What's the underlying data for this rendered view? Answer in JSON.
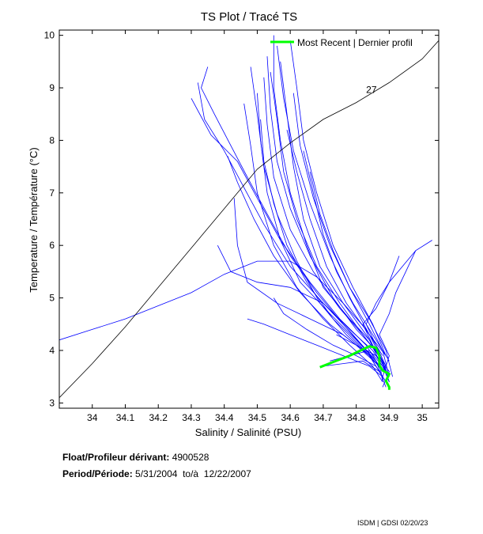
{
  "chart_data": {
    "type": "line",
    "title": "TS Plot / Tracé TS",
    "xlabel": "Salinity / Salinité (PSU)",
    "ylabel": "Temperature / Température (°C)",
    "xlim": [
      33.9,
      35.05
    ],
    "ylim": [
      2.9,
      10.1
    ],
    "xticks": [
      "34",
      "34.1",
      "34.2",
      "34.3",
      "34.4",
      "34.5",
      "34.6",
      "34.7",
      "34.8",
      "34.9",
      "35"
    ],
    "yticks": [
      "3",
      "4",
      "5",
      "6",
      "7",
      "8",
      "9",
      "10"
    ],
    "grid": false,
    "legend": {
      "label": "Most Recent | Dernier profil",
      "position": "top-right",
      "color": "#00ff00"
    },
    "isopycnal": {
      "label": "27",
      "points": [
        [
          33.9,
          3.1
        ],
        [
          34.0,
          3.75
        ],
        [
          34.1,
          4.45
        ],
        [
          34.2,
          5.2
        ],
        [
          34.3,
          5.95
        ],
        [
          34.4,
          6.7
        ],
        [
          34.5,
          7.45
        ],
        [
          34.6,
          7.95
        ],
        [
          34.7,
          8.4
        ],
        [
          34.8,
          8.72
        ],
        [
          34.9,
          9.1
        ],
        [
          35.0,
          9.55
        ],
        [
          35.05,
          9.9
        ]
      ],
      "label_at": [
        34.83,
        8.9
      ]
    },
    "series": [
      {
        "points": [
          [
            34.55,
            10.0
          ],
          [
            34.55,
            9.0
          ],
          [
            34.57,
            8.0
          ],
          [
            34.6,
            7.0
          ],
          [
            34.65,
            6.0
          ],
          [
            34.7,
            5.2
          ],
          [
            34.78,
            4.6
          ],
          [
            34.84,
            4.2
          ],
          [
            34.87,
            3.8
          ],
          [
            34.88,
            3.4
          ]
        ]
      },
      {
        "points": [
          [
            34.53,
            9.6
          ],
          [
            34.54,
            8.6
          ],
          [
            34.56,
            7.6
          ],
          [
            34.6,
            6.7
          ],
          [
            34.66,
            5.8
          ],
          [
            34.73,
            5.0
          ],
          [
            34.8,
            4.4
          ],
          [
            34.86,
            4.0
          ],
          [
            34.89,
            3.6
          ]
        ]
      },
      {
        "points": [
          [
            34.52,
            9.2
          ],
          [
            34.53,
            8.3
          ],
          [
            34.55,
            7.3
          ],
          [
            34.6,
            6.3
          ],
          [
            34.67,
            5.5
          ],
          [
            34.75,
            4.8
          ],
          [
            34.82,
            4.3
          ],
          [
            34.87,
            3.9
          ],
          [
            34.9,
            3.5
          ]
        ]
      },
      {
        "points": [
          [
            34.56,
            9.8
          ],
          [
            34.58,
            8.8
          ],
          [
            34.61,
            7.8
          ],
          [
            34.66,
            6.8
          ],
          [
            34.72,
            5.8
          ],
          [
            34.78,
            5.0
          ],
          [
            34.84,
            4.3
          ],
          [
            34.88,
            3.8
          ]
        ]
      },
      {
        "points": [
          [
            34.5,
            8.9
          ],
          [
            34.51,
            8.0
          ],
          [
            34.53,
            7.0
          ],
          [
            34.57,
            6.1
          ],
          [
            34.63,
            5.3
          ],
          [
            34.72,
            4.7
          ],
          [
            34.8,
            4.2
          ],
          [
            34.86,
            3.8
          ],
          [
            34.89,
            3.3
          ]
        ]
      },
      {
        "points": [
          [
            34.46,
            8.7
          ],
          [
            34.48,
            7.9
          ],
          [
            34.5,
            7.0
          ],
          [
            34.55,
            6.0
          ],
          [
            34.62,
            5.2
          ],
          [
            34.7,
            4.6
          ],
          [
            34.78,
            4.1
          ],
          [
            34.85,
            3.7
          ],
          [
            34.88,
            3.4
          ]
        ]
      },
      {
        "points": [
          [
            34.48,
            9.4
          ],
          [
            34.5,
            8.5
          ],
          [
            34.52,
            7.5
          ],
          [
            34.56,
            6.6
          ],
          [
            34.62,
            5.7
          ],
          [
            34.69,
            4.9
          ],
          [
            34.77,
            4.3
          ],
          [
            34.84,
            3.9
          ],
          [
            34.88,
            3.5
          ]
        ]
      },
      {
        "points": [
          [
            34.6,
            9.9
          ],
          [
            34.62,
            9.0
          ],
          [
            34.64,
            8.0
          ],
          [
            34.68,
            7.0
          ],
          [
            34.73,
            6.0
          ],
          [
            34.79,
            5.2
          ],
          [
            34.85,
            4.5
          ],
          [
            34.89,
            3.9
          ]
        ]
      },
      {
        "points": [
          [
            34.35,
            9.4
          ],
          [
            34.33,
            9.0
          ],
          [
            34.37,
            8.5
          ],
          [
            34.42,
            7.9
          ],
          [
            34.47,
            7.3
          ],
          [
            34.53,
            6.6
          ],
          [
            34.6,
            5.8
          ],
          [
            34.68,
            5.1
          ],
          [
            34.76,
            4.5
          ],
          [
            34.83,
            4.0
          ],
          [
            34.88,
            3.6
          ]
        ]
      },
      {
        "points": [
          [
            34.32,
            9.1
          ],
          [
            34.34,
            8.4
          ],
          [
            34.4,
            7.8
          ],
          [
            34.46,
            7.1
          ],
          [
            34.52,
            6.4
          ],
          [
            34.6,
            5.6
          ],
          [
            34.7,
            4.9
          ],
          [
            34.79,
            4.3
          ],
          [
            34.86,
            3.8
          ]
        ]
      },
      {
        "points": [
          [
            34.3,
            8.8
          ],
          [
            34.36,
            8.1
          ],
          [
            34.44,
            7.6
          ],
          [
            34.5,
            6.9
          ],
          [
            34.57,
            6.1
          ],
          [
            34.66,
            5.3
          ],
          [
            34.75,
            4.6
          ],
          [
            34.83,
            4.1
          ],
          [
            34.88,
            3.6
          ]
        ]
      },
      {
        "points": [
          [
            34.41,
            7.7
          ],
          [
            34.44,
            7.2
          ],
          [
            34.49,
            6.5
          ],
          [
            34.55,
            5.8
          ],
          [
            34.63,
            5.1
          ],
          [
            34.72,
            4.5
          ],
          [
            34.8,
            4.1
          ],
          [
            34.87,
            3.7
          ]
        ]
      },
      {
        "points": [
          [
            34.57,
            9.5
          ],
          [
            34.59,
            8.5
          ],
          [
            34.61,
            7.5
          ],
          [
            34.64,
            6.5
          ],
          [
            34.69,
            5.6
          ],
          [
            34.76,
            4.9
          ],
          [
            34.83,
            4.3
          ],
          [
            34.88,
            3.8
          ],
          [
            34.9,
            3.4
          ]
        ]
      },
      {
        "points": [
          [
            34.59,
            8.2
          ],
          [
            34.62,
            7.4
          ],
          [
            34.66,
            6.5
          ],
          [
            34.71,
            5.6
          ],
          [
            34.77,
            4.9
          ],
          [
            34.84,
            4.3
          ],
          [
            34.89,
            3.9
          ]
        ]
      },
      {
        "points": [
          [
            34.64,
            7.8
          ],
          [
            34.67,
            7.0
          ],
          [
            34.7,
            6.2
          ],
          [
            34.74,
            5.5
          ],
          [
            34.79,
            4.9
          ],
          [
            34.85,
            4.3
          ],
          [
            34.9,
            3.8
          ]
        ]
      },
      {
        "points": [
          [
            34.38,
            6.0
          ],
          [
            34.42,
            5.5
          ],
          [
            34.5,
            5.3
          ],
          [
            34.6,
            5.2
          ],
          [
            34.7,
            4.9
          ],
          [
            34.78,
            4.4
          ],
          [
            34.85,
            4.0
          ],
          [
            34.89,
            3.6
          ]
        ]
      },
      {
        "points": [
          [
            34.43,
            6.9
          ],
          [
            34.44,
            6.0
          ],
          [
            34.47,
            5.3
          ],
          [
            34.56,
            4.9
          ],
          [
            34.66,
            4.6
          ],
          [
            34.76,
            4.3
          ],
          [
            34.84,
            3.9
          ],
          [
            34.88,
            3.5
          ]
        ]
      },
      {
        "points": [
          [
            33.9,
            4.2
          ],
          [
            34.0,
            4.4
          ],
          [
            34.1,
            4.6
          ],
          [
            34.2,
            4.85
          ],
          [
            34.3,
            5.1
          ],
          [
            34.4,
            5.45
          ],
          [
            34.5,
            5.7
          ],
          [
            34.6,
            5.7
          ],
          [
            34.68,
            5.4
          ],
          [
            34.76,
            4.9
          ],
          [
            34.83,
            4.4
          ],
          [
            34.88,
            3.9
          ]
        ]
      },
      {
        "points": [
          [
            35.03,
            6.1
          ],
          [
            34.98,
            5.9
          ],
          [
            34.94,
            5.6
          ],
          [
            34.9,
            5.3
          ],
          [
            34.86,
            4.9
          ],
          [
            34.83,
            4.5
          ],
          [
            34.86,
            4.1
          ],
          [
            34.89,
            3.7
          ]
        ]
      },
      {
        "points": [
          [
            34.98,
            5.9
          ],
          [
            34.95,
            5.5
          ],
          [
            34.92,
            5.1
          ],
          [
            34.9,
            4.7
          ],
          [
            34.87,
            4.3
          ],
          [
            34.9,
            3.9
          ],
          [
            34.88,
            3.5
          ]
        ]
      },
      {
        "points": [
          [
            34.93,
            5.8
          ],
          [
            34.9,
            5.3
          ],
          [
            34.86,
            4.8
          ],
          [
            34.82,
            4.5
          ],
          [
            34.85,
            4.1
          ],
          [
            34.89,
            3.7
          ]
        ]
      },
      {
        "points": [
          [
            34.55,
            5.0
          ],
          [
            34.58,
            4.7
          ],
          [
            34.65,
            4.4
          ],
          [
            34.73,
            4.1
          ],
          [
            34.8,
            3.9
          ],
          [
            34.86,
            3.7
          ],
          [
            34.89,
            3.4
          ]
        ]
      },
      {
        "points": [
          [
            34.47,
            4.6
          ],
          [
            34.52,
            4.5
          ],
          [
            34.6,
            4.3
          ],
          [
            34.68,
            4.1
          ],
          [
            34.76,
            3.9
          ],
          [
            34.84,
            3.7
          ],
          [
            34.88,
            3.5
          ]
        ]
      },
      {
        "points": [
          [
            34.74,
            4.3
          ],
          [
            34.8,
            4.1
          ],
          [
            34.86,
            3.9
          ],
          [
            34.9,
            3.6
          ],
          [
            34.88,
            3.3
          ]
        ]
      },
      {
        "points": [
          [
            34.72,
            3.8
          ],
          [
            34.78,
            3.9
          ],
          [
            34.84,
            4.0
          ],
          [
            34.88,
            3.7
          ],
          [
            34.9,
            3.4
          ]
        ]
      },
      {
        "points": [
          [
            34.7,
            3.7
          ],
          [
            34.76,
            3.75
          ],
          [
            34.82,
            3.8
          ],
          [
            34.87,
            3.6
          ],
          [
            34.9,
            3.3
          ]
        ]
      },
      {
        "points": [
          [
            34.61,
            8.9
          ],
          [
            34.63,
            7.9
          ],
          [
            34.67,
            6.9
          ],
          [
            34.72,
            6.0
          ],
          [
            34.78,
            5.2
          ],
          [
            34.84,
            4.5
          ],
          [
            34.88,
            4.0
          ],
          [
            34.9,
            3.5
          ]
        ]
      },
      {
        "points": [
          [
            34.51,
            8.4
          ],
          [
            34.52,
            7.6
          ],
          [
            34.55,
            6.8
          ],
          [
            34.59,
            6.0
          ],
          [
            34.65,
            5.3
          ],
          [
            34.73,
            4.6
          ],
          [
            34.81,
            4.1
          ],
          [
            34.87,
            3.7
          ]
        ]
      },
      {
        "points": [
          [
            34.54,
            9.3
          ],
          [
            34.56,
            8.4
          ],
          [
            34.58,
            7.4
          ],
          [
            34.62,
            6.5
          ],
          [
            34.68,
            5.6
          ],
          [
            34.75,
            4.9
          ],
          [
            34.82,
            4.3
          ],
          [
            34.88,
            3.8
          ]
        ]
      },
      {
        "points": [
          [
            34.66,
            7.4
          ],
          [
            34.69,
            6.6
          ],
          [
            34.73,
            5.9
          ],
          [
            34.78,
            5.2
          ],
          [
            34.84,
            4.6
          ],
          [
            34.89,
            4.0
          ],
          [
            34.91,
            3.5
          ]
        ]
      }
    ],
    "most_recent": {
      "name": "Most Recent | Dernier profil",
      "color": "#00ff00",
      "points": [
        [
          34.69,
          3.68
        ],
        [
          34.73,
          3.78
        ],
        [
          34.78,
          3.9
        ],
        [
          34.82,
          4.02
        ],
        [
          34.84,
          4.08
        ],
        [
          34.86,
          4.05
        ],
        [
          34.87,
          3.9
        ],
        [
          34.87,
          3.72
        ],
        [
          34.88,
          3.62
        ],
        [
          34.9,
          3.55
        ],
        [
          34.89,
          3.42
        ],
        [
          34.9,
          3.3
        ],
        [
          34.9,
          3.25
        ]
      ]
    }
  },
  "info": {
    "float_label": "Float/Profileur dérivant:",
    "float_value": "4900528",
    "period_label": "Period/Période:",
    "period_value": "5/31/2004  to/à  12/22/2007"
  },
  "footer": "ISDM | GDSI  02/20/23"
}
